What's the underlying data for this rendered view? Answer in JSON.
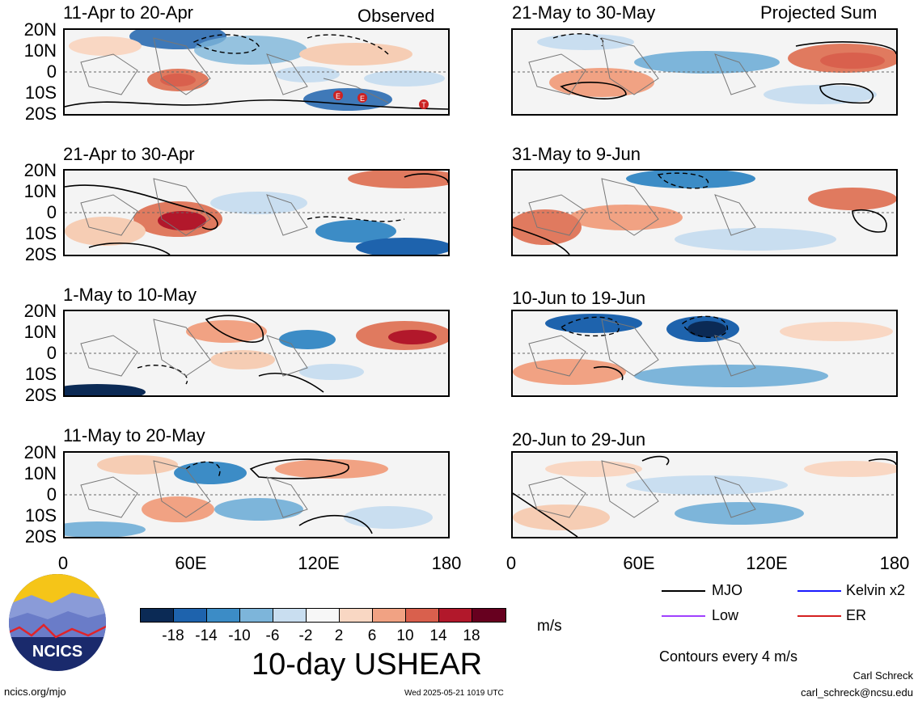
{
  "header": {
    "left_tag": "Observed",
    "right_tag": "Projected Sum"
  },
  "panels": {
    "left": [
      "11-Apr to 20-Apr",
      "21-Apr to 30-Apr",
      "1-May to 10-May",
      "11-May to 20-May"
    ],
    "right": [
      "21-May to 30-May",
      "31-May to 9-Jun",
      "10-Jun to 19-Jun",
      "20-Jun to 29-Jun"
    ]
  },
  "lat_labels": [
    "20N",
    "10N",
    "0",
    "10S",
    "20S"
  ],
  "lon_labels": [
    "0",
    "60E",
    "120E",
    "180"
  ],
  "storm_markers": [
    "E",
    "E",
    "T"
  ],
  "colorbar": {
    "labels": [
      "-18",
      "-14",
      "-10",
      "-6",
      "-2",
      "2",
      "6",
      "10",
      "14",
      "18"
    ],
    "colors": [
      "#0b2a55",
      "#1e63ad",
      "#3c8cc6",
      "#7db5da",
      "#c9def0",
      "#f7f7f7",
      "#f9d7c3",
      "#f1a283",
      "#d9604d",
      "#b2182b",
      "#67001f"
    ],
    "unit": "m/s"
  },
  "title": "10-day USHEAR",
  "legend": {
    "items": [
      {
        "label": "MJO",
        "color": "#000000"
      },
      {
        "label": "Kelvin x2",
        "color": "#1a1aff"
      },
      {
        "label": "Low",
        "color": "#a040ff"
      },
      {
        "label": "ER",
        "color": "#d42020"
      }
    ],
    "contours": "Contours every 4 m/s"
  },
  "logo": {
    "text": "NCICS"
  },
  "footer": {
    "url": "ncics.org/mjo",
    "timestamp": "Wed 2025-05-21 1019 UTC",
    "author": "Carl Schreck",
    "email": "carl_schreck@ncsu.edu"
  }
}
